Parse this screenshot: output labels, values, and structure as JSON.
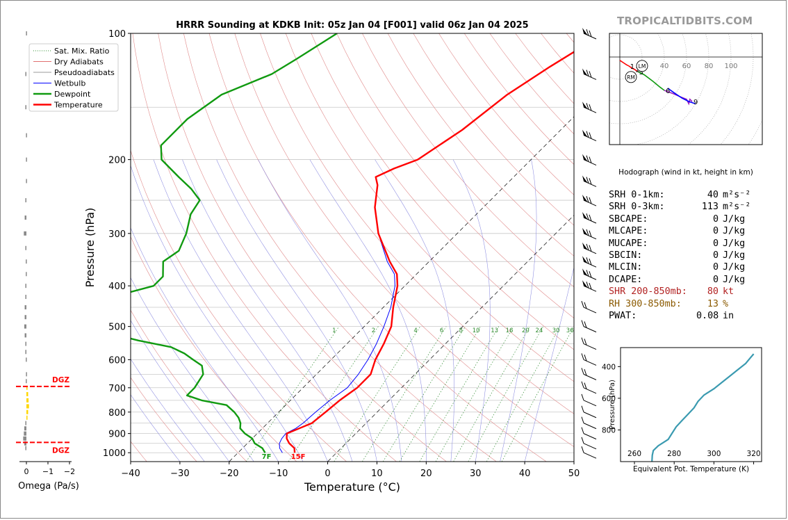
{
  "chart_title": "HRRR Sounding at KDKB Init: 05z Jan 04 [F001] valid 06z Jan 04 2025",
  "brand": "TROPICALTIDBITS.COM",
  "legend": [
    {
      "label": "Sat. Mix. Ratio",
      "color": "#2e8b2e",
      "style": "dotted"
    },
    {
      "label": "Dry Adiabats",
      "color": "#e07070",
      "style": "solid"
    },
    {
      "label": "Pseudoadiabats",
      "color": "#9a9a9a",
      "style": "solid"
    },
    {
      "label": "Wetbulb",
      "color": "#0000ff",
      "style": "solid"
    },
    {
      "label": "Dewpoint",
      "color": "#109a10",
      "style": "thick"
    },
    {
      "label": "Temperature",
      "color": "#ff0000",
      "style": "thick"
    }
  ],
  "chart_data": [
    {
      "type": "line",
      "name": "skew-t",
      "xlabel": "Temperature (°C)",
      "ylabel": "Pressure (hPa)",
      "xlim": [
        -40,
        50
      ],
      "ylim": [
        1050,
        100
      ],
      "y_scale": "log",
      "x_ticks": [
        -40,
        -30,
        -20,
        -10,
        0,
        10,
        20,
        30,
        40,
        50
      ],
      "x_tick_labels": [
        "−40",
        "−30",
        "−20",
        "−10",
        "0",
        "10",
        "20",
        "30",
        "40",
        "50"
      ],
      "y_tick_labels": [
        1000,
        900,
        800,
        700,
        600,
        500,
        400,
        300,
        200,
        100
      ],
      "mix_ratio_labels": [
        "1",
        "2",
        "4",
        "6",
        "8",
        "10",
        "13",
        "16",
        "20",
        "24",
        "30",
        "36"
      ],
      "surface_labels": {
        "dewpoint": "7F",
        "temperature": "15F"
      },
      "series": [
        {
          "name": "Temperature",
          "color": "#ff0000",
          "points": [
            [
              1000,
              -8.5
            ],
            [
              975,
              -9.5
            ],
            [
              950,
              -11.5
            ],
            [
              925,
              -13
            ],
            [
              900,
              -14
            ],
            [
              875,
              -12.5
            ],
            [
              850,
              -11
            ],
            [
              800,
              -10.5
            ],
            [
              750,
              -10
            ],
            [
              700,
              -9
            ],
            [
              650,
              -9
            ],
            [
              600,
              -11
            ],
            [
              550,
              -12.5
            ],
            [
              500,
              -14.5
            ],
            [
              450,
              -18
            ],
            [
              400,
              -21.5
            ],
            [
              375,
              -24
            ],
            [
              350,
              -28
            ],
            [
              300,
              -36
            ],
            [
              260,
              -42
            ],
            [
              230,
              -46
            ],
            [
              220,
              -48
            ],
            [
              210,
              -46
            ],
            [
              200,
              -43
            ],
            [
              170,
              -40
            ],
            [
              140,
              -38
            ],
            [
              120,
              -35
            ],
            [
              110,
              -33
            ],
            [
              100,
              -30
            ]
          ]
        },
        {
          "name": "Dewpoint",
          "color": "#109a10",
          "points": [
            [
              1000,
              -14.5
            ],
            [
              975,
              -16
            ],
            [
              950,
              -18.5
            ],
            [
              925,
              -20
            ],
            [
              900,
              -22.5
            ],
            [
              875,
              -24.5
            ],
            [
              850,
              -25.5
            ],
            [
              825,
              -27
            ],
            [
              800,
              -29
            ],
            [
              770,
              -32
            ],
            [
              750,
              -38
            ],
            [
              730,
              -42
            ],
            [
              700,
              -42
            ],
            [
              650,
              -43
            ],
            [
              620,
              -45
            ],
            [
              600,
              -48
            ],
            [
              580,
              -51
            ],
            [
              560,
              -55
            ],
            [
              540,
              -63
            ],
            [
              520,
              -70
            ],
            [
              500,
              -74
            ],
            [
              450,
              -76
            ],
            [
              440,
              -80
            ],
            [
              420,
              -76
            ],
            [
              400,
              -71
            ],
            [
              380,
              -71
            ],
            [
              350,
              -74
            ],
            [
              330,
              -73
            ],
            [
              300,
              -75
            ],
            [
              270,
              -78
            ],
            [
              250,
              -79
            ],
            [
              235,
              -83
            ],
            [
              220,
              -88
            ],
            [
              200,
              -95
            ],
            [
              185,
              -98
            ],
            [
              160,
              -98
            ],
            [
              140,
              -96
            ],
            [
              125,
              -90
            ],
            [
              115,
              -88
            ],
            [
              100,
              -85
            ]
          ]
        },
        {
          "name": "Wetbulb",
          "color": "#0000ff",
          "points": [
            [
              1000,
              -11
            ],
            [
              975,
              -12.5
            ],
            [
              950,
              -13.5
            ],
            [
              925,
              -14
            ],
            [
              900,
              -14.2
            ],
            [
              875,
              -13.2
            ],
            [
              850,
              -12.8
            ],
            [
              800,
              -12.5
            ],
            [
              750,
              -12
            ],
            [
              700,
              -11
            ],
            [
              650,
              -11.5
            ],
            [
              600,
              -12.5
            ],
            [
              550,
              -14
            ],
            [
              500,
              -16
            ],
            [
              450,
              -18.5
            ],
            [
              400,
              -22
            ],
            [
              375,
              -24.5
            ],
            [
              350,
              -28.5
            ],
            [
              300,
              -36
            ],
            [
              260,
              -42
            ],
            [
              230,
              -46
            ],
            [
              220,
              -48
            ],
            [
              210,
              -46
            ],
            [
              200,
              -43
            ],
            [
              170,
              -40
            ],
            [
              140,
              -38
            ],
            [
              120,
              -35
            ],
            [
              110,
              -33
            ],
            [
              100,
              -30
            ]
          ]
        }
      ]
    },
    {
      "type": "bar",
      "name": "omega",
      "xlabel": "Omega (Pa/s)",
      "x_ticks": [
        0,
        -1,
        -2
      ],
      "x_tick_labels": [
        "0",
        "−1",
        "−2"
      ],
      "dgz_label": "DGZ",
      "dgz_top_hpa": 695,
      "dgz_bottom_hpa": 945,
      "values": [
        {
          "p": 100,
          "omega": 0.02
        },
        {
          "p": 125,
          "omega": 0.05
        },
        {
          "p": 150,
          "omega": 0.05
        },
        {
          "p": 175,
          "omega": 0.02
        },
        {
          "p": 200,
          "omega": 0.02
        },
        {
          "p": 225,
          "omega": 0.02
        },
        {
          "p": 250,
          "omega": 0.05
        },
        {
          "p": 275,
          "omega": 0.08
        },
        {
          "p": 300,
          "omega": 0.12
        },
        {
          "p": 325,
          "omega": 0.05
        },
        {
          "p": 350,
          "omega": 0.03
        },
        {
          "p": 375,
          "omega": 0.03
        },
        {
          "p": 400,
          "omega": 0.05
        },
        {
          "p": 425,
          "omega": 0.05
        },
        {
          "p": 450,
          "omega": 0.08
        },
        {
          "p": 475,
          "omega": 0.08
        },
        {
          "p": 500,
          "omega": 0.1
        },
        {
          "p": 525,
          "omega": 0.08
        },
        {
          "p": 550,
          "omega": 0.05
        },
        {
          "p": 575,
          "omega": 0.05
        },
        {
          "p": 600,
          "omega": 0.03
        },
        {
          "p": 650,
          "omega": 0.02
        },
        {
          "p": 675,
          "omega": 0.03
        },
        {
          "p": 700,
          "omega": -0.05
        },
        {
          "p": 725,
          "omega": -0.08
        },
        {
          "p": 750,
          "omega": -0.1
        },
        {
          "p": 775,
          "omega": -0.12
        },
        {
          "p": 800,
          "omega": -0.08
        },
        {
          "p": 825,
          "omega": -0.05
        },
        {
          "p": 850,
          "omega": 0.05
        },
        {
          "p": 875,
          "omega": 0.1
        },
        {
          "p": 900,
          "omega": 0.12
        },
        {
          "p": 925,
          "omega": 0.15
        },
        {
          "p": 950,
          "omega": 0.1
        },
        {
          "p": 975,
          "omega": 0.05
        }
      ]
    },
    {
      "type": "line",
      "name": "hodograph",
      "caption": "Hodograph (wind in kt, height in km)",
      "ring_labels": [
        "20",
        "40",
        "60",
        "80",
        "100"
      ],
      "markers": [
        "RM",
        "LM"
      ],
      "height_labels": [
        {
          "label": "1",
          "u": 8,
          "v": -8
        },
        {
          "label": "2",
          "u": 13,
          "v": -11
        },
        {
          "label": "3",
          "u": 16,
          "v": -13
        },
        {
          "label": "6",
          "u": 40,
          "v": -30
        },
        {
          "label": "9",
          "u": 65,
          "v": -40
        }
      ],
      "series": [
        {
          "name": "0-1km",
          "color": "#ff0000",
          "points": [
            [
              0,
              -3
            ],
            [
              3,
              -5
            ],
            [
              6,
              -7
            ],
            [
              8,
              -8
            ]
          ]
        },
        {
          "name": "1-3km",
          "color": "#ff0000",
          "points": [
            [
              8,
              -8
            ],
            [
              11,
              -10
            ],
            [
              13,
              -11
            ],
            [
              16,
              -13
            ]
          ]
        },
        {
          "name": "3-6km",
          "color": "#109a10",
          "points": [
            [
              16,
              -13
            ],
            [
              22,
              -16
            ],
            [
              30,
              -22
            ],
            [
              36,
              -27
            ],
            [
              40,
              -30
            ]
          ]
        },
        {
          "name": "6-9km",
          "color": "#9a20c0",
          "points": [
            [
              40,
              -30
            ],
            [
              48,
              -33
            ],
            [
              55,
              -36
            ],
            [
              60,
              -38
            ],
            [
              62,
              -42
            ],
            [
              63,
              -38
            ],
            [
              65,
              -40
            ]
          ]
        },
        {
          "name": "9km+",
          "color": "#0000ff",
          "points": [
            [
              43,
              -28
            ],
            [
              50,
              -33
            ],
            [
              56,
              -37
            ],
            [
              62,
              -40
            ],
            [
              68,
              -42
            ]
          ]
        }
      ],
      "rm": {
        "u": 10,
        "v": -18
      },
      "lm": {
        "u": 20,
        "v": -8
      }
    },
    {
      "type": "line",
      "name": "theta-e",
      "xlabel": "Equivalent Pot. Temperature (K)",
      "ylabel": "Pressure (hPa)",
      "x_ticks": [
        260,
        280,
        300,
        320
      ],
      "y_ticks": [
        400,
        600,
        800
      ],
      "xlim": [
        253,
        324
      ],
      "ylim": [
        1000,
        280
      ],
      "series": [
        {
          "name": "theta-e",
          "color": "#3a9ab0",
          "points": [
            [
              1000,
              268.8
            ],
            [
              960,
              269
            ],
            [
              930,
              269.5
            ],
            [
              900,
              272
            ],
            [
              860,
              277
            ],
            [
              820,
              279
            ],
            [
              780,
              281
            ],
            [
              740,
              284
            ],
            [
              700,
              287
            ],
            [
              660,
              290
            ],
            [
              620,
              292
            ],
            [
              580,
              295
            ],
            [
              540,
              300
            ],
            [
              500,
              304
            ],
            [
              460,
              308
            ],
            [
              420,
              312
            ],
            [
              380,
              316
            ],
            [
              350,
              318
            ],
            [
              320,
              320
            ]
          ]
        }
      ]
    }
  ],
  "stats": [
    {
      "label": "SRH 0-1km:",
      "value": "40",
      "unit": "m²s⁻²",
      "color": "#000000"
    },
    {
      "label": "SRH 0-3km:",
      "value": "113",
      "unit": "m²s⁻²",
      "color": "#000000"
    },
    {
      "label": "SBCAPE:",
      "value": "0",
      "unit": "J/kg",
      "color": "#000000"
    },
    {
      "label": "MLCAPE:",
      "value": "0",
      "unit": "J/kg",
      "color": "#000000"
    },
    {
      "label": "MUCAPE:",
      "value": "0",
      "unit": "J/kg",
      "color": "#000000"
    },
    {
      "label": "SBCIN:",
      "value": "0",
      "unit": "J/kg",
      "color": "#000000"
    },
    {
      "label": "MLCIN:",
      "value": "0",
      "unit": "J/kg",
      "color": "#000000"
    },
    {
      "label": "DCAPE:",
      "value": "0",
      "unit": "J/kg",
      "color": "#000000"
    },
    {
      "label": "SHR 200-850mb:",
      "value": "80",
      "unit": "kt",
      "color": "#b22222"
    },
    {
      "label": "RH 300-850mb:",
      "value": "13",
      "unit": "%",
      "color": "#8b5a00"
    },
    {
      "label": "PWAT:",
      "value": "0.08",
      "unit": "in",
      "color": "#000000"
    }
  ]
}
